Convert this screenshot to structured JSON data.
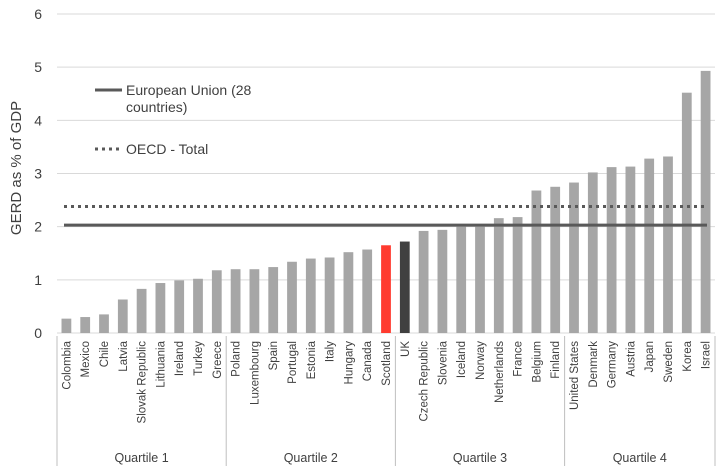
{
  "chart_data": {
    "type": "bar",
    "title": "",
    "xlabel": "",
    "ylabel": "GERD as % of GDP",
    "ylim": [
      0,
      6
    ],
    "yticks": [
      0,
      1,
      2,
      3,
      4,
      5,
      6
    ],
    "grid": "horizontal",
    "legend_position": "top-left",
    "categories": [
      "Colombia",
      "Mexico",
      "Chile",
      "Latvia",
      "Slovak Republic",
      "Lithuania",
      "Ireland",
      "Turkey",
      "Greece",
      "Poland",
      "Luxembourg",
      "Spain",
      "Portugal",
      "Estonia",
      "Italy",
      "Hungary",
      "Canada",
      "Scotland",
      "UK",
      "Czech Republic",
      "Slovenia",
      "Iceland",
      "Norway",
      "Netherlands",
      "France",
      "Belgium",
      "Finland",
      "United States",
      "Denmark",
      "Germany",
      "Austria",
      "Japan",
      "Sweden",
      "Korea",
      "Israel"
    ],
    "values": [
      0.27,
      0.3,
      0.35,
      0.63,
      0.83,
      0.94,
      0.99,
      1.02,
      1.18,
      1.2,
      1.2,
      1.24,
      1.34,
      1.4,
      1.42,
      1.52,
      1.57,
      1.65,
      1.72,
      1.92,
      1.94,
      2.0,
      2.0,
      2.16,
      2.18,
      2.68,
      2.75,
      2.83,
      3.02,
      3.12,
      3.13,
      3.28,
      3.32,
      4.52,
      4.93
    ],
    "highlight": {
      "Scotland": "#ff3b2f",
      "UK": "#404040"
    },
    "bar_color": "#a6a6a6",
    "reference_lines": [
      {
        "name": "European Union (28 countries)",
        "name_lines": [
          "European Union (28",
          "countries)"
        ],
        "value": 2.03,
        "style": "solid",
        "color": "#595959"
      },
      {
        "name": "OECD - Total",
        "name_lines": [
          "OECD - Total"
        ],
        "value": 2.38,
        "style": "dotted",
        "color": "#595959"
      }
    ],
    "groups": [
      {
        "label": "Quartile 1",
        "start": 0,
        "end": 8
      },
      {
        "label": "Quartile 2",
        "start": 9,
        "end": 17
      },
      {
        "label": "Quartile 3",
        "start": 18,
        "end": 26
      },
      {
        "label": "Quartile 4",
        "start": 27,
        "end": 34
      }
    ]
  }
}
